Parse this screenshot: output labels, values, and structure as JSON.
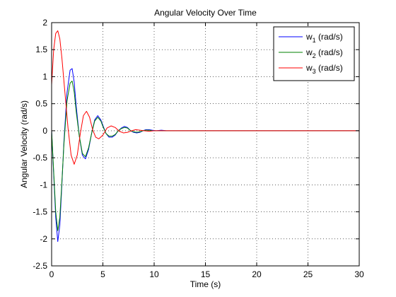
{
  "chart_data": {
    "type": "line",
    "title": "Angular Velocity Over Time",
    "xlabel": "Time (s)",
    "ylabel": "Angular Velocity (rad/s)",
    "xlim": [
      0,
      30
    ],
    "ylim": [
      -2.5,
      2
    ],
    "xticks": [
      0,
      5,
      10,
      15,
      20,
      25,
      30
    ],
    "yticks": [
      -2.5,
      -2,
      -1.5,
      -1,
      -0.5,
      0,
      0.5,
      1,
      1.5,
      2
    ],
    "ytick_labels": [
      "-2.5",
      "-2",
      "-1.5",
      "-1",
      "-0.5",
      "0",
      "0.5",
      "1",
      "1.5",
      "2"
    ],
    "grid": true,
    "legend_position": "top-right",
    "series": [
      {
        "name": "w",
        "subscript": "1",
        "unit": " (rad/s)",
        "color": "#0000ff",
        "x": [
          0,
          0.2,
          0.4,
          0.6,
          0.8,
          1.0,
          1.2,
          1.5,
          1.8,
          2.0,
          2.2,
          2.4,
          2.7,
          3.0,
          3.3,
          3.6,
          3.9,
          4.2,
          4.5,
          4.8,
          5.0,
          5.3,
          5.6,
          5.9,
          6.2,
          6.5,
          6.8,
          7.1,
          7.4,
          7.7,
          8.0,
          8.3,
          8.6,
          8.9,
          9.2,
          9.5,
          9.8,
          10.2,
          10.7,
          11.2,
          12,
          14,
          16,
          18,
          20,
          25,
          30
        ],
        "y": [
          0,
          -0.8,
          -1.6,
          -2.05,
          -1.75,
          -1.0,
          -0.2,
          0.7,
          1.12,
          1.15,
          0.9,
          0.45,
          -0.1,
          -0.45,
          -0.52,
          -0.35,
          -0.05,
          0.2,
          0.28,
          0.2,
          0.1,
          -0.05,
          -0.12,
          -0.12,
          -0.08,
          0.0,
          0.05,
          0.08,
          0.06,
          0.0,
          -0.03,
          -0.04,
          -0.03,
          0.0,
          0.02,
          0.02,
          0.01,
          0.0,
          0.01,
          0.0,
          0.0,
          0.0,
          0.0,
          0.0,
          0.0,
          0.0,
          0.0
        ]
      },
      {
        "name": "w",
        "subscript": "2",
        "unit": " (rad/s)",
        "color": "#008000",
        "x": [
          0,
          0.2,
          0.4,
          0.6,
          0.8,
          1.0,
          1.2,
          1.5,
          1.8,
          2.0,
          2.2,
          2.4,
          2.7,
          3.0,
          3.3,
          3.6,
          3.9,
          4.2,
          4.5,
          4.8,
          5.0,
          5.3,
          5.6,
          5.9,
          6.2,
          6.5,
          6.8,
          7.1,
          7.4,
          7.7,
          8.0,
          8.3,
          8.6,
          8.9,
          9.2,
          9.5,
          9.8,
          10.2,
          10.7,
          11.2,
          12,
          14,
          16,
          18,
          20,
          25,
          30
        ],
        "y": [
          0,
          -0.75,
          -1.5,
          -1.85,
          -1.6,
          -0.95,
          -0.25,
          0.55,
          0.88,
          0.92,
          0.72,
          0.35,
          -0.1,
          -0.42,
          -0.48,
          -0.32,
          -0.05,
          0.18,
          0.25,
          0.18,
          0.08,
          -0.05,
          -0.1,
          -0.1,
          -0.07,
          0.0,
          0.04,
          0.06,
          0.05,
          0.0,
          -0.02,
          -0.03,
          -0.02,
          0.0,
          0.01,
          0.01,
          0.0,
          0.0,
          0.0,
          0.0,
          0.0,
          0.0,
          0.0,
          0.0,
          0.0,
          0.0,
          0.0
        ]
      },
      {
        "name": "w",
        "subscript": "3",
        "unit": " (rad/s)",
        "color": "#ff0000",
        "x": [
          0,
          0.2,
          0.4,
          0.6,
          0.8,
          1.0,
          1.3,
          1.6,
          1.9,
          2.2,
          2.5,
          2.8,
          3.1,
          3.4,
          3.7,
          4.0,
          4.3,
          4.6,
          5.0,
          5.4,
          5.8,
          6.2,
          6.6,
          7.0,
          7.4,
          7.8,
          8.2,
          8.6,
          9.0,
          9.5,
          10.0,
          10.5,
          11,
          12,
          14,
          16,
          20,
          25,
          30
        ],
        "y": [
          0.85,
          1.5,
          1.8,
          1.85,
          1.7,
          1.35,
          0.7,
          0.05,
          -0.45,
          -0.62,
          -0.45,
          -0.05,
          0.28,
          0.36,
          0.25,
          0.02,
          -0.12,
          -0.15,
          -0.08,
          0.05,
          0.09,
          0.06,
          -0.01,
          -0.04,
          -0.03,
          0.0,
          0.02,
          0.01,
          0.0,
          -0.01,
          0.0,
          0.0,
          0.0,
          0.0,
          0.0,
          0.0,
          0.0,
          0.0,
          0.0
        ]
      }
    ]
  }
}
